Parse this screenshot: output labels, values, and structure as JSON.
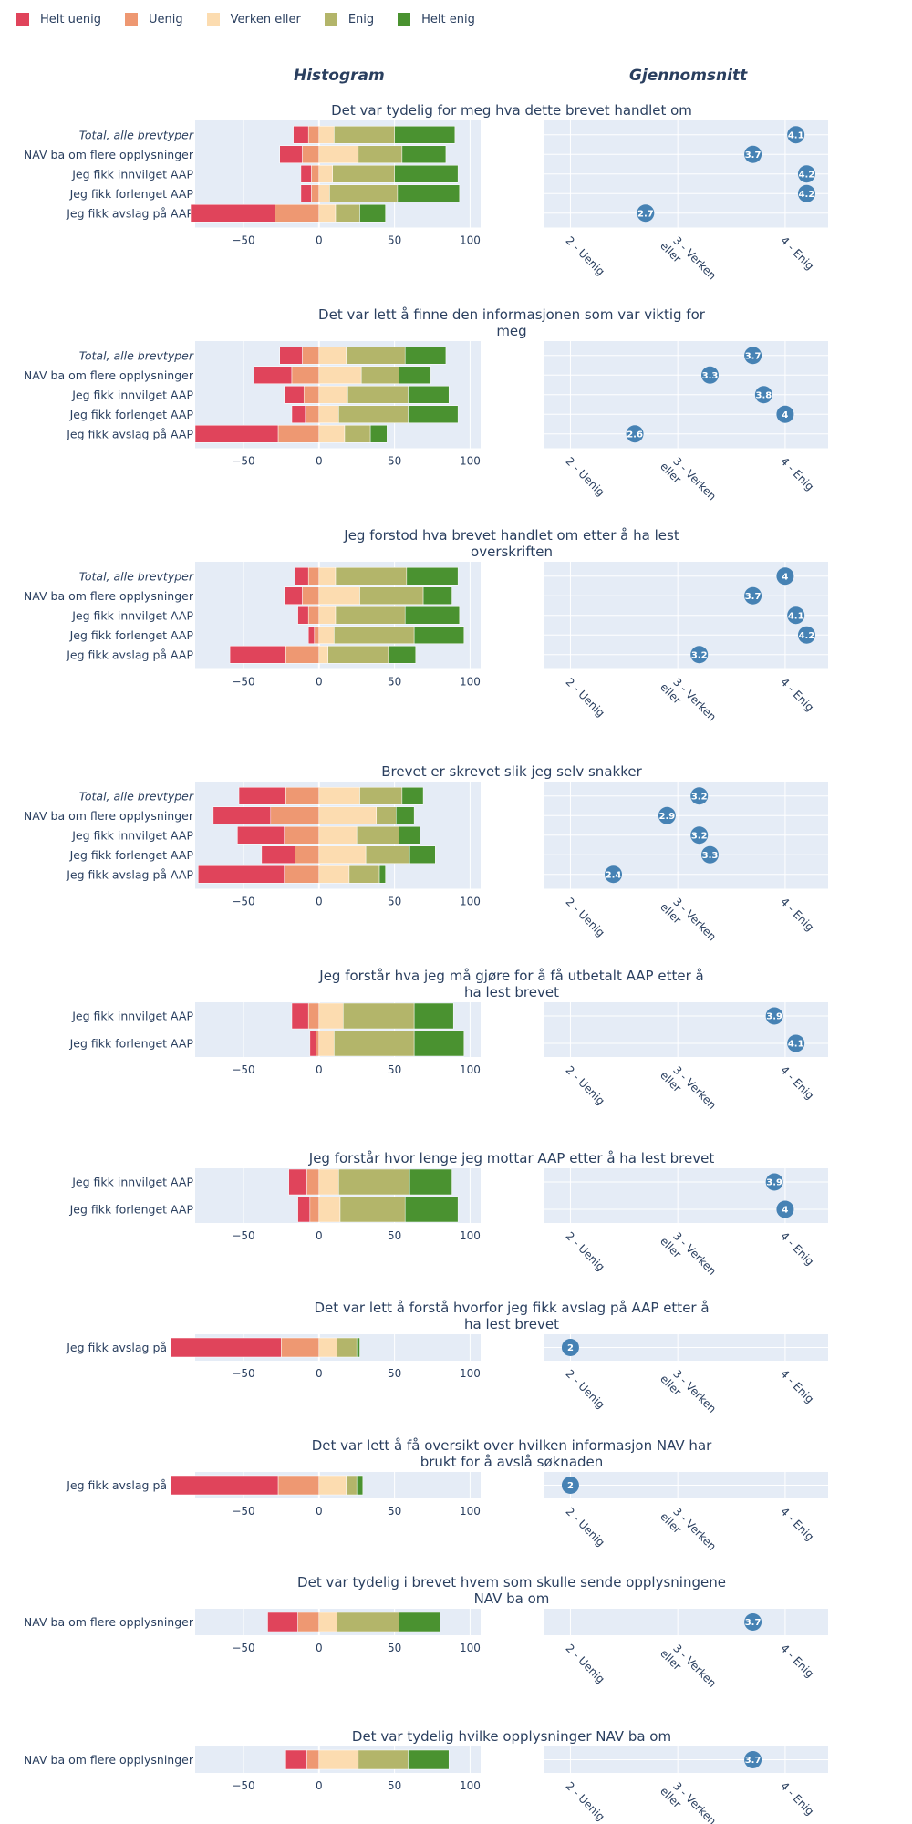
{
  "legend": {
    "items": [
      {
        "label": "Helt uenig",
        "color": "#e0445b"
      },
      {
        "label": "Uenig",
        "color": "#ee9872"
      },
      {
        "label": "Verken eller",
        "color": "#fcdcb0"
      },
      {
        "label": "Enig",
        "color": "#b3b56a"
      },
      {
        "label": "Helt enig",
        "color": "#4a9230"
      }
    ]
  },
  "columns": {
    "histogram": "Histogram",
    "average": "Gjennomsnitt"
  },
  "chart_data": [
    {
      "type": "bar",
      "title": [
        "Det var tydelig for meg hva dette brevet handlet om"
      ],
      "categories": [
        "Total, alle brevtyper",
        "NAV ba om flere opplysninger",
        "Jeg fikk innvilget AAP",
        "Jeg fikk forlenget AAP",
        "Jeg fikk avslag på AAP"
      ],
      "series": [
        {
          "name": "Helt uenig",
          "values": [
            -10,
            -15,
            -7,
            -7,
            -56
          ]
        },
        {
          "name": "Uenig",
          "values": [
            -7,
            -11,
            -5,
            -5,
            -29
          ]
        },
        {
          "name": "Verken eller",
          "values": [
            10,
            26,
            9,
            7,
            11
          ]
        },
        {
          "name": "Enig",
          "values": [
            40,
            29,
            41,
            45,
            16
          ]
        },
        {
          "name": "Helt enig",
          "values": [
            40,
            29,
            42,
            41,
            17
          ]
        }
      ],
      "xticks": [
        -50,
        0,
        50,
        100
      ],
      "xlim": [
        -82,
        107
      ],
      "averages": [
        4.1,
        3.7,
        4.2,
        4.2,
        2.7
      ]
    },
    {
      "type": "bar",
      "title": [
        "Det var lett å finne den informasjonen som var viktig for",
        "meg"
      ],
      "categories": [
        "Total, alle brevtyper",
        "NAV ba om flere opplysninger",
        "Jeg fikk innvilget AAP",
        "Jeg fikk forlenget AAP",
        "Jeg fikk avslag på AAP"
      ],
      "series": [
        {
          "name": "Helt uenig",
          "values": [
            -15,
            -25,
            -13,
            -9,
            -55
          ]
        },
        {
          "name": "Uenig",
          "values": [
            -11,
            -18,
            -10,
            -9,
            -27
          ]
        },
        {
          "name": "Verken eller",
          "values": [
            18,
            28,
            19,
            13,
            17
          ]
        },
        {
          "name": "Enig",
          "values": [
            39,
            25,
            40,
            46,
            17
          ]
        },
        {
          "name": "Helt enig",
          "values": [
            27,
            21,
            27,
            33,
            11
          ]
        }
      ],
      "xticks": [
        -50,
        0,
        50,
        100
      ],
      "xlim": [
        -82,
        107
      ],
      "averages": [
        3.7,
        3.3,
        3.8,
        4,
        2.6
      ]
    },
    {
      "type": "bar",
      "title": [
        "Jeg forstod hva brevet handlet om etter å ha lest",
        "overskriften"
      ],
      "categories": [
        "Total, alle brevtyper",
        "NAV ba om flere opplysninger",
        "Jeg fikk innvilget AAP",
        "Jeg fikk forlenget AAP",
        "Jeg fikk avslag på AAP"
      ],
      "series": [
        {
          "name": "Helt uenig",
          "values": [
            -9,
            -12,
            -7,
            -4,
            -37
          ]
        },
        {
          "name": "Uenig",
          "values": [
            -7,
            -11,
            -7,
            -3,
            -22
          ]
        },
        {
          "name": "Verken eller",
          "values": [
            11,
            27,
            11,
            10,
            6
          ]
        },
        {
          "name": "Enig",
          "values": [
            47,
            42,
            46,
            53,
            40
          ]
        },
        {
          "name": "Helt enig",
          "values": [
            34,
            19,
            36,
            33,
            18
          ]
        }
      ],
      "xticks": [
        -50,
        0,
        50,
        100
      ],
      "xlim": [
        -82,
        107
      ],
      "averages": [
        4,
        3.7,
        4.1,
        4.2,
        3.2
      ]
    },
    {
      "type": "bar",
      "title": [
        "Brevet er skrevet slik jeg selv snakker"
      ],
      "categories": [
        "Total, alle brevtyper",
        "NAV ba om flere opplysninger",
        "Jeg fikk innvilget AAP",
        "Jeg fikk forlenget AAP",
        "Jeg fikk avslag på AAP"
      ],
      "series": [
        {
          "name": "Helt uenig",
          "values": [
            -31,
            -38,
            -31,
            -22,
            -57
          ]
        },
        {
          "name": "Uenig",
          "values": [
            -22,
            -32,
            -23,
            -16,
            -23
          ]
        },
        {
          "name": "Verken eller",
          "values": [
            27,
            38,
            25,
            31,
            20
          ]
        },
        {
          "name": "Enig",
          "values": [
            28,
            13,
            28,
            29,
            20
          ]
        },
        {
          "name": "Helt enig",
          "values": [
            14,
            12,
            14,
            17,
            4
          ]
        }
      ],
      "xticks": [
        -50,
        0,
        50,
        100
      ],
      "xlim": [
        -82,
        107
      ],
      "averages": [
        3.2,
        2.9,
        3.2,
        3.3,
        2.4
      ]
    },
    {
      "type": "bar",
      "title": [
        "Jeg forstår hva jeg må gjøre for å få utbetalt AAP etter å",
        "ha lest brevet"
      ],
      "categories": [
        "Jeg fikk innvilget AAP",
        "Jeg fikk forlenget AAP"
      ],
      "series": [
        {
          "name": "Helt uenig",
          "values": [
            -11,
            -4
          ]
        },
        {
          "name": "Uenig",
          "values": [
            -7,
            -2
          ]
        },
        {
          "name": "Verken eller",
          "values": [
            16,
            10
          ]
        },
        {
          "name": "Enig",
          "values": [
            47,
            53
          ]
        },
        {
          "name": "Helt enig",
          "values": [
            26,
            33
          ]
        }
      ],
      "xticks": [
        -50,
        0,
        50,
        100
      ],
      "xlim": [
        -82,
        107
      ],
      "averages": [
        3.9,
        4.1
      ]
    },
    {
      "type": "bar",
      "title": [
        "Jeg forstår hvor lenge jeg mottar AAP etter å ha lest brevet"
      ],
      "categories": [
        "Jeg fikk innvilget AAP",
        "Jeg fikk forlenget AAP"
      ],
      "series": [
        {
          "name": "Helt uenig",
          "values": [
            -12,
            -8
          ]
        },
        {
          "name": "Uenig",
          "values": [
            -8,
            -6
          ]
        },
        {
          "name": "Verken eller",
          "values": [
            13,
            14
          ]
        },
        {
          "name": "Enig",
          "values": [
            47,
            43
          ]
        },
        {
          "name": "Helt enig",
          "values": [
            28,
            35
          ]
        }
      ],
      "xticks": [
        -50,
        0,
        50,
        100
      ],
      "xlim": [
        -82,
        107
      ],
      "averages": [
        3.9,
        4
      ]
    },
    {
      "type": "bar",
      "title": [
        "Det var lett å forstå hvorfor jeg fikk avslag på AAP etter å",
        "ha lest brevet"
      ],
      "categories": [
        "Jeg fikk avslag på AAP"
      ],
      "series": [
        {
          "name": "Helt uenig",
          "values": [
            -73
          ]
        },
        {
          "name": "Uenig",
          "values": [
            -25
          ]
        },
        {
          "name": "Verken eller",
          "values": [
            12
          ]
        },
        {
          "name": "Enig",
          "values": [
            13
          ]
        },
        {
          "name": "Helt enig",
          "values": [
            2
          ]
        }
      ],
      "xticks": [
        -50,
        0,
        50,
        100
      ],
      "xlim": [
        -82,
        107
      ],
      "averages": [
        2
      ]
    },
    {
      "type": "bar",
      "title": [
        "Det var lett å få oversikt over hvilken informasjon NAV har",
        "brukt for å avslå søknaden"
      ],
      "categories": [
        "Jeg fikk avslag på AAP"
      ],
      "series": [
        {
          "name": "Helt uenig",
          "values": [
            -71
          ]
        },
        {
          "name": "Uenig",
          "values": [
            -27
          ]
        },
        {
          "name": "Verken eller",
          "values": [
            18
          ]
        },
        {
          "name": "Enig",
          "values": [
            7
          ]
        },
        {
          "name": "Helt enig",
          "values": [
            4
          ]
        }
      ],
      "xticks": [
        -50,
        0,
        50,
        100
      ],
      "xlim": [
        -82,
        107
      ],
      "averages": [
        2
      ]
    },
    {
      "type": "bar",
      "title": [
        "Det var tydelig i brevet hvem som skulle sende opplysningene",
        "NAV ba om"
      ],
      "categories": [
        "NAV ba om flere opplysninger"
      ],
      "series": [
        {
          "name": "Helt uenig",
          "values": [
            -20
          ]
        },
        {
          "name": "Uenig",
          "values": [
            -14
          ]
        },
        {
          "name": "Verken eller",
          "values": [
            12
          ]
        },
        {
          "name": "Enig",
          "values": [
            41
          ]
        },
        {
          "name": "Helt enig",
          "values": [
            27
          ]
        }
      ],
      "xticks": [
        -50,
        0,
        50,
        100
      ],
      "xlim": [
        -82,
        107
      ],
      "averages": [
        3.7
      ]
    },
    {
      "type": "bar",
      "title": [
        "Det var tydelig hvilke opplysninger NAV ba om"
      ],
      "categories": [
        "NAV ba om flere opplysninger"
      ],
      "series": [
        {
          "name": "Helt uenig",
          "values": [
            -14
          ]
        },
        {
          "name": "Uenig",
          "values": [
            -8
          ]
        },
        {
          "name": "Verken eller",
          "values": [
            26
          ]
        },
        {
          "name": "Enig",
          "values": [
            33
          ]
        },
        {
          "name": "Helt enig",
          "values": [
            27
          ]
        }
      ],
      "xticks": [
        -50,
        0,
        50,
        100
      ],
      "xlim": [
        -82,
        107
      ],
      "averages": [
        3.7
      ]
    }
  ],
  "avg_axis": {
    "ticks": [
      {
        "value": 2,
        "label": [
          "2 - Uenig"
        ]
      },
      {
        "value": 3,
        "label": [
          "3 - Verken",
          "eller"
        ]
      },
      {
        "value": 4,
        "label": [
          "4 - Enig"
        ]
      }
    ],
    "xlim": [
      1.75,
      4.4
    ]
  }
}
